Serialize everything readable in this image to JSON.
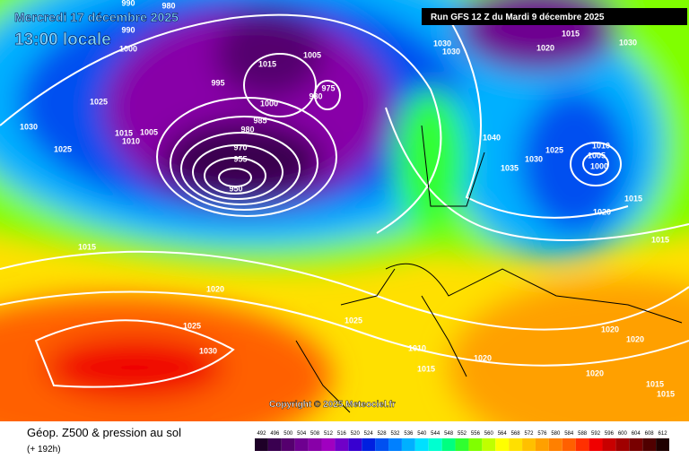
{
  "header": {
    "date": "Mercredi 17 décembre 2025",
    "time": "13:00 locale",
    "run": "Run GFS 12 Z du Mardi 9 décembre 2025"
  },
  "copyright": "Copyright © 2025 Meteociel.fr",
  "footer": {
    "title": "Géop. Z500 & pression au sol",
    "lead": "(+ 192h)"
  },
  "legend": {
    "values": [
      492,
      496,
      500,
      504,
      508,
      512,
      516,
      520,
      524,
      528,
      532,
      536,
      540,
      544,
      548,
      552,
      556,
      560,
      564,
      568,
      572,
      576,
      580,
      584,
      588,
      592,
      596,
      600,
      604,
      608,
      612
    ],
    "colors": [
      "#1e0028",
      "#3a0050",
      "#55006e",
      "#6e0090",
      "#8800a8",
      "#a000c0",
      "#7000c8",
      "#3800d0",
      "#0020e0",
      "#0050f0",
      "#0080ff",
      "#00b0ff",
      "#00e0ff",
      "#00ffd0",
      "#00ff80",
      "#30ff30",
      "#80ff00",
      "#c0ff00",
      "#ffff00",
      "#ffe000",
      "#ffc000",
      "#ffa000",
      "#ff8000",
      "#ff6000",
      "#ff3000",
      "#f00000",
      "#c80000",
      "#a00000",
      "#780000",
      "#500000",
      "#200000"
    ]
  },
  "isobar_labels": [
    990,
    980,
    990,
    1000,
    1015,
    1005,
    995,
    975,
    980,
    1000,
    985,
    980,
    970,
    955,
    950,
    1025,
    1030,
    1015,
    1005,
    1010,
    1025,
    1015,
    1020,
    1025,
    1030,
    1025,
    1010,
    1015,
    1020,
    1030,
    1030,
    1015,
    1020,
    1030,
    1040,
    1035,
    1030,
    1025,
    1010,
    1005,
    1000,
    1015,
    1020,
    1015,
    1020,
    1020,
    1020,
    1015,
    1015
  ]
}
